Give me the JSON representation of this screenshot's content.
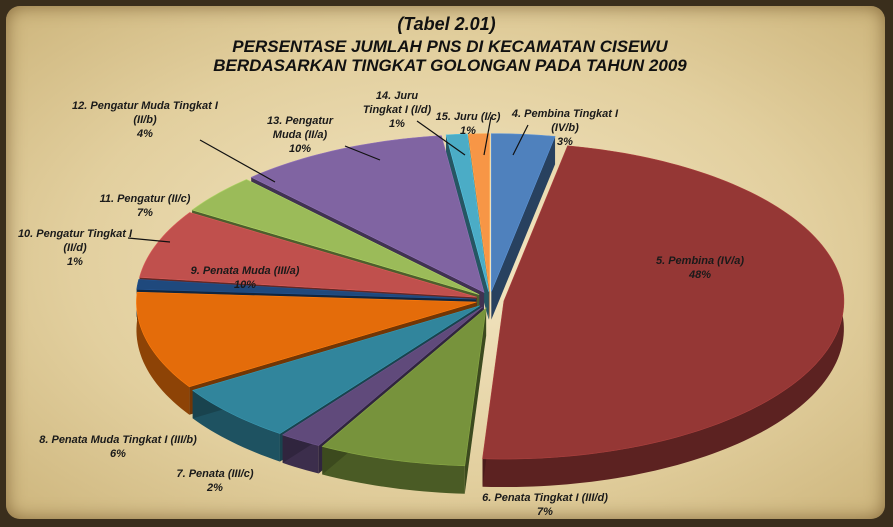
{
  "chart_data": {
    "type": "pie",
    "title": "(Tabel 2.01)",
    "subtitle": "PERSENTASE JUMLAH PNS DI KECAMATAN CISEWU BERDASARKAN TINGKAT GOLONGAN PADA TAHUN 2009",
    "categories": [
      "4. Pembina Tingkat I (IV/b)",
      "5. Pembina (IV/a)",
      "6. Penata Tingkat I (III/d)",
      "7. Penata (III/c)",
      "8. Penata Muda Tingkat I (III/b)",
      "9. Penata Muda (III/a)",
      "10. Pengatur Tingkat I (II/d)",
      "11. Pengatur (II/c)",
      "12. Pengatur Muda Tingkat I (II/b)",
      "13. Pengatur Muda (II/a)",
      "14. Juru Tingkat I (I/d)",
      "15. Juru (I/c)"
    ],
    "values": [
      3,
      48,
      7,
      2,
      6,
      10,
      1,
      7,
      4,
      10,
      1,
      1
    ],
    "value_labels": [
      "3%",
      "48%",
      "7%",
      "2%",
      "6%",
      "10%",
      "1%",
      "7%",
      "4%",
      "10%",
      "1%",
      "1%"
    ],
    "colors": [
      "#4f81bd",
      "#953735",
      "#77933c",
      "#604a7b",
      "#31859c",
      "#e46c0a",
      "#1f497d",
      "#c0504d",
      "#9bbb59",
      "#8064a2",
      "#4bacc6",
      "#f79646"
    ]
  }
}
